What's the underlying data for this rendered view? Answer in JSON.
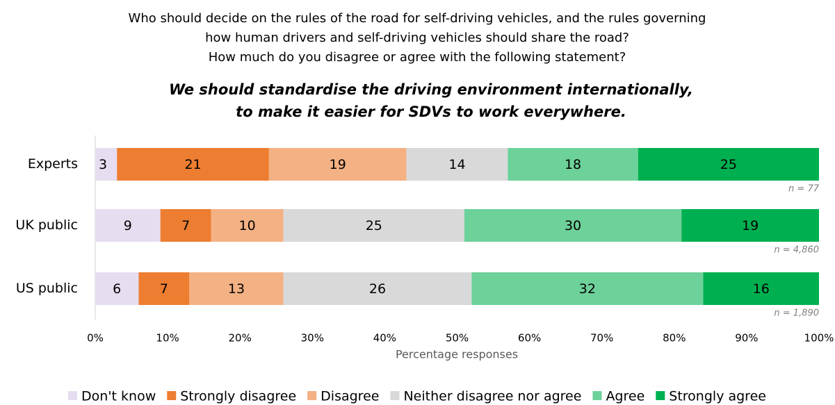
{
  "chart_data": {
    "type": "stacked_barh",
    "title_lines": [
      "Who should decide on the rules of the road for self-driving vehicles, and the rules governing",
      "how human drivers and self-driving vehicles should share the road?",
      "How much do you disagree or agree with the following statement?"
    ],
    "subtitle_lines": [
      "We should standardise the driving environment internationally,",
      "to make it easier for SDVs to work everywhere."
    ],
    "categories": [
      "Experts",
      "UK public",
      "US public"
    ],
    "annotations": [
      "n = 77",
      "n = 4,860",
      "n = 1,890"
    ],
    "series": [
      {
        "name": "Don't know",
        "color": "#e6ddf0",
        "values": [
          3,
          9,
          6
        ]
      },
      {
        "name": "Strongly disagree",
        "color": "#ed7d31",
        "values": [
          21,
          7,
          7
        ]
      },
      {
        "name": "Disagree",
        "color": "#f4b183",
        "values": [
          19,
          10,
          13
        ]
      },
      {
        "name": "Neither disagree nor agree",
        "color": "#d9d9d9",
        "values": [
          14,
          25,
          26
        ]
      },
      {
        "name": "Agree",
        "color": "#6dd19a",
        "values": [
          18,
          30,
          32
        ]
      },
      {
        "name": "Strongly agree",
        "color": "#00b050",
        "values": [
          25,
          19,
          16
        ]
      }
    ],
    "xlim": [
      0,
      100
    ],
    "xticks": [
      {
        "value": 0,
        "label": "0%"
      },
      {
        "value": 10,
        "label": "10%"
      },
      {
        "value": 20,
        "label": "20%"
      },
      {
        "value": 30,
        "label": "30%"
      },
      {
        "value": 40,
        "label": "40%"
      },
      {
        "value": 50,
        "label": "50%"
      },
      {
        "value": 60,
        "label": "60%"
      },
      {
        "value": 70,
        "label": "70%"
      },
      {
        "value": 80,
        "label": "80%"
      },
      {
        "value": 90,
        "label": "90%"
      },
      {
        "value": 100,
        "label": "100%"
      }
    ],
    "x_label": "Percentage responses",
    "legend": "bottom"
  }
}
